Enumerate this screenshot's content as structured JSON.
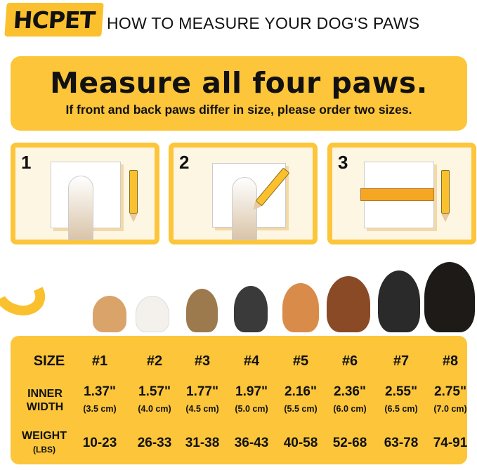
{
  "brand": {
    "logo": "HCPET",
    "accent": "#fcc53a"
  },
  "title": "HOW TO MEASURE YOUR DOG'S PAWS",
  "banner": {
    "heading": "Measure all four paws.",
    "subheading": "If front and back paws differ in size, please order two sizes."
  },
  "steps": [
    {
      "number": "1"
    },
    {
      "number": "2"
    },
    {
      "number": "3"
    }
  ],
  "table": {
    "row_labels": {
      "size": "SIZE",
      "inner_width_1": "INNER",
      "inner_width_2": "WIDTH",
      "weight": "WEIGHT",
      "weight_unit": "(LBS)"
    },
    "columns": [
      {
        "size": "#1",
        "inches": "1.37\"",
        "cm": "(3.5 cm)",
        "weight": "10-23"
      },
      {
        "size": "#2",
        "inches": "1.57\"",
        "cm": "(4.0 cm)",
        "weight": "26-33"
      },
      {
        "size": "#3",
        "inches": "1.77\"",
        "cm": "(4.5 cm)",
        "weight": "31-38"
      },
      {
        "size": "#4",
        "inches": "1.97\"",
        "cm": "(5.0 cm)",
        "weight": "36-43"
      },
      {
        "size": "#5",
        "inches": "2.16\"",
        "cm": "(5.5 cm)",
        "weight": "40-58"
      },
      {
        "size": "#6",
        "inches": "2.36\"",
        "cm": "(6.0 cm)",
        "weight": "52-68"
      },
      {
        "size": "#7",
        "inches": "2.55\"",
        "cm": "(6.5 cm)",
        "weight": "63-78"
      },
      {
        "size": "#8",
        "inches": "2.75\"",
        "cm": "(7.0 cm)",
        "weight": "74-91"
      }
    ]
  }
}
